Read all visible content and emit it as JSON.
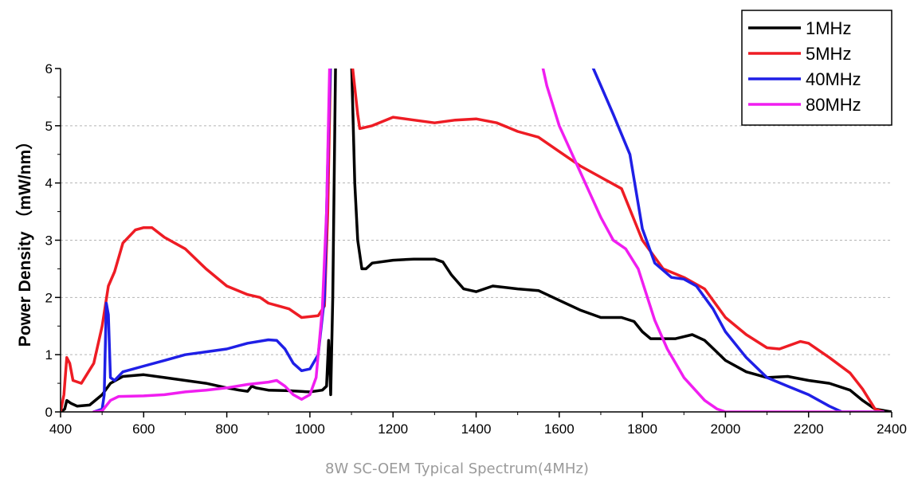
{
  "caption": "8W SC-OEM Typical Spectrum(4MHz)",
  "chart_data": {
    "type": "line",
    "title": "",
    "xlabel": "",
    "ylabel": "Power Density （mW/nm）",
    "xlim": [
      400,
      2400
    ],
    "ylim": [
      0,
      6
    ],
    "xticks": [
      "400",
      "600",
      "800",
      "1000",
      "1200",
      "1400",
      "1600",
      "1800",
      "2000",
      "2200",
      "2400"
    ],
    "yticks": [
      "0",
      "1",
      "2",
      "3",
      "4",
      "5",
      "6"
    ],
    "grid": "horizontal-dashed",
    "legend_position": "top-right",
    "series": [
      {
        "name": "1MHz",
        "color": "#000000",
        "points": [
          [
            400,
            0
          ],
          [
            410,
            0.05
          ],
          [
            415,
            0.2
          ],
          [
            425,
            0.15
          ],
          [
            440,
            0.1
          ],
          [
            470,
            0.12
          ],
          [
            500,
            0.3
          ],
          [
            520,
            0.5
          ],
          [
            550,
            0.62
          ],
          [
            600,
            0.65
          ],
          [
            650,
            0.6
          ],
          [
            700,
            0.55
          ],
          [
            750,
            0.5
          ],
          [
            800,
            0.42
          ],
          [
            830,
            0.38
          ],
          [
            850,
            0.36
          ],
          [
            860,
            0.45
          ],
          [
            870,
            0.42
          ],
          [
            900,
            0.38
          ],
          [
            950,
            0.37
          ],
          [
            1000,
            0.35
          ],
          [
            1030,
            0.38
          ],
          [
            1040,
            0.45
          ],
          [
            1045,
            1.25
          ],
          [
            1050,
            0.3
          ],
          [
            1055,
            2.0
          ],
          [
            1062,
            6.2
          ],
          [
            1100,
            6.2
          ],
          [
            1108,
            4.0
          ],
          [
            1115,
            3.0
          ],
          [
            1125,
            2.5
          ],
          [
            1135,
            2.5
          ],
          [
            1150,
            2.6
          ],
          [
            1200,
            2.65
          ],
          [
            1250,
            2.67
          ],
          [
            1300,
            2.67
          ],
          [
            1320,
            2.62
          ],
          [
            1340,
            2.4
          ],
          [
            1370,
            2.15
          ],
          [
            1400,
            2.1
          ],
          [
            1440,
            2.2
          ],
          [
            1500,
            2.15
          ],
          [
            1550,
            2.12
          ],
          [
            1600,
            1.95
          ],
          [
            1650,
            1.78
          ],
          [
            1700,
            1.65
          ],
          [
            1750,
            1.65
          ],
          [
            1780,
            1.58
          ],
          [
            1800,
            1.4
          ],
          [
            1820,
            1.28
          ],
          [
            1850,
            1.28
          ],
          [
            1880,
            1.28
          ],
          [
            1920,
            1.35
          ],
          [
            1950,
            1.25
          ],
          [
            2000,
            0.9
          ],
          [
            2050,
            0.7
          ],
          [
            2100,
            0.6
          ],
          [
            2150,
            0.62
          ],
          [
            2200,
            0.55
          ],
          [
            2250,
            0.5
          ],
          [
            2300,
            0.38
          ],
          [
            2330,
            0.2
          ],
          [
            2360,
            0.05
          ],
          [
            2400,
            0
          ]
        ]
      },
      {
        "name": "5MHz",
        "color": "#ee1c24",
        "points": [
          [
            400,
            0
          ],
          [
            408,
            0.3
          ],
          [
            415,
            0.95
          ],
          [
            422,
            0.85
          ],
          [
            430,
            0.55
          ],
          [
            450,
            0.5
          ],
          [
            480,
            0.85
          ],
          [
            500,
            1.5
          ],
          [
            515,
            2.2
          ],
          [
            530,
            2.45
          ],
          [
            550,
            2.95
          ],
          [
            580,
            3.18
          ],
          [
            600,
            3.22
          ],
          [
            620,
            3.22
          ],
          [
            650,
            3.05
          ],
          [
            700,
            2.85
          ],
          [
            750,
            2.5
          ],
          [
            800,
            2.2
          ],
          [
            850,
            2.05
          ],
          [
            880,
            2.0
          ],
          [
            900,
            1.9
          ],
          [
            950,
            1.8
          ],
          [
            980,
            1.65
          ],
          [
            1020,
            1.68
          ],
          [
            1035,
            1.85
          ],
          [
            1043,
            3.5
          ],
          [
            1050,
            6.2
          ],
          [
            1100,
            6.2
          ],
          [
            1115,
            5.2
          ],
          [
            1120,
            4.95
          ],
          [
            1150,
            5.0
          ],
          [
            1200,
            5.15
          ],
          [
            1250,
            5.1
          ],
          [
            1300,
            5.05
          ],
          [
            1350,
            5.1
          ],
          [
            1400,
            5.12
          ],
          [
            1450,
            5.05
          ],
          [
            1500,
            4.9
          ],
          [
            1550,
            4.8
          ],
          [
            1600,
            4.55
          ],
          [
            1650,
            4.3
          ],
          [
            1700,
            4.1
          ],
          [
            1750,
            3.9
          ],
          [
            1800,
            3.0
          ],
          [
            1850,
            2.5
          ],
          [
            1900,
            2.35
          ],
          [
            1950,
            2.15
          ],
          [
            2000,
            1.65
          ],
          [
            2050,
            1.35
          ],
          [
            2100,
            1.12
          ],
          [
            2130,
            1.1
          ],
          [
            2180,
            1.23
          ],
          [
            2200,
            1.2
          ],
          [
            2250,
            0.95
          ],
          [
            2300,
            0.68
          ],
          [
            2330,
            0.4
          ],
          [
            2360,
            0.05
          ],
          [
            2380,
            0
          ]
        ]
      },
      {
        "name": "40MHz",
        "color": "#1f1fe6",
        "points": [
          [
            480,
            0
          ],
          [
            500,
            0.05
          ],
          [
            505,
            0.3
          ],
          [
            510,
            1.9
          ],
          [
            515,
            1.7
          ],
          [
            520,
            0.6
          ],
          [
            530,
            0.55
          ],
          [
            550,
            0.7
          ],
          [
            600,
            0.8
          ],
          [
            650,
            0.9
          ],
          [
            700,
            1.0
          ],
          [
            750,
            1.05
          ],
          [
            800,
            1.1
          ],
          [
            850,
            1.2
          ],
          [
            900,
            1.26
          ],
          [
            920,
            1.25
          ],
          [
            940,
            1.1
          ],
          [
            960,
            0.85
          ],
          [
            980,
            0.72
          ],
          [
            1000,
            0.75
          ],
          [
            1020,
            1.0
          ],
          [
            1035,
            2.0
          ],
          [
            1045,
            5.0
          ],
          [
            1050,
            6.2
          ],
          [
            1670,
            6.2
          ],
          [
            1700,
            5.7
          ],
          [
            1730,
            5.2
          ],
          [
            1770,
            4.5
          ],
          [
            1800,
            3.2
          ],
          [
            1830,
            2.6
          ],
          [
            1870,
            2.35
          ],
          [
            1900,
            2.32
          ],
          [
            1930,
            2.2
          ],
          [
            1970,
            1.8
          ],
          [
            2000,
            1.4
          ],
          [
            2050,
            0.95
          ],
          [
            2100,
            0.6
          ],
          [
            2150,
            0.45
          ],
          [
            2200,
            0.3
          ],
          [
            2250,
            0.1
          ],
          [
            2280,
            0
          ],
          [
            2380,
            0
          ]
        ]
      },
      {
        "name": "80MHz",
        "color": "#f01ef0",
        "points": [
          [
            480,
            0
          ],
          [
            500,
            0.02
          ],
          [
            520,
            0.2
          ],
          [
            540,
            0.27
          ],
          [
            600,
            0.28
          ],
          [
            650,
            0.3
          ],
          [
            700,
            0.35
          ],
          [
            750,
            0.38
          ],
          [
            800,
            0.42
          ],
          [
            850,
            0.48
          ],
          [
            900,
            0.52
          ],
          [
            920,
            0.55
          ],
          [
            940,
            0.45
          ],
          [
            960,
            0.3
          ],
          [
            980,
            0.22
          ],
          [
            1000,
            0.3
          ],
          [
            1015,
            0.6
          ],
          [
            1030,
            1.8
          ],
          [
            1040,
            3.5
          ],
          [
            1048,
            6.2
          ],
          [
            1555,
            6.2
          ],
          [
            1570,
            5.7
          ],
          [
            1600,
            5.0
          ],
          [
            1650,
            4.2
          ],
          [
            1700,
            3.4
          ],
          [
            1730,
            3.0
          ],
          [
            1760,
            2.85
          ],
          [
            1790,
            2.5
          ],
          [
            1830,
            1.6
          ],
          [
            1860,
            1.1
          ],
          [
            1900,
            0.6
          ],
          [
            1950,
            0.2
          ],
          [
            1980,
            0.05
          ],
          [
            2000,
            0
          ],
          [
            2380,
            0
          ]
        ]
      }
    ]
  }
}
